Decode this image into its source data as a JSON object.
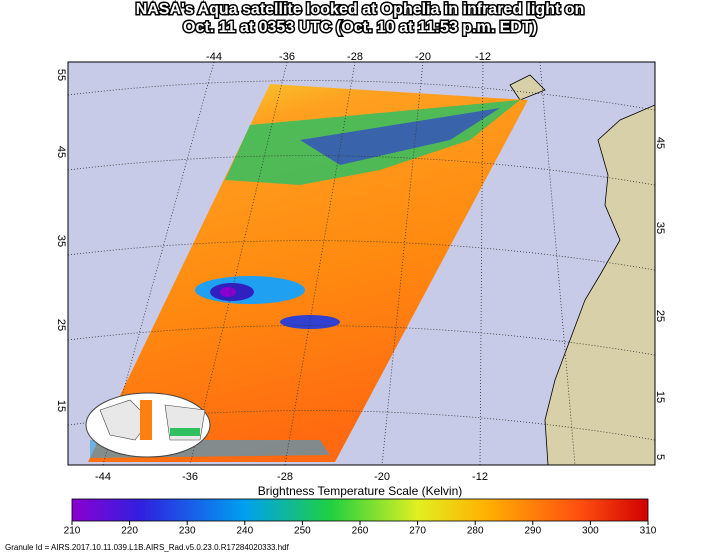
{
  "title": [
    "NASA's Aqua satellite looked at Ophelia in infrared light on",
    "Oct. 11 at 0353 UTC (Oct. 10 at 11:53 p.m. EDT)"
  ],
  "lon_labels_top": [
    -44,
    -36,
    -28,
    -20,
    -12
  ],
  "lon_labels_bottom": [
    -44,
    -36,
    -28,
    -20,
    -12
  ],
  "lat_labels_left": [
    55,
    45,
    35,
    25,
    15
  ],
  "lat_labels_right": [
    45,
    35,
    25,
    15,
    5
  ],
  "colorbar": {
    "title": "Brightness Temperature Scale (Kelvin)",
    "ticks": [
      210,
      220,
      230,
      240,
      250,
      260,
      270,
      280,
      290,
      300,
      310
    ]
  },
  "granule": "Granule Id = AIRS.2017.10.11.039.L1B.AIRS_Rad.v5.0.23.0.R17284020333.hdf"
}
